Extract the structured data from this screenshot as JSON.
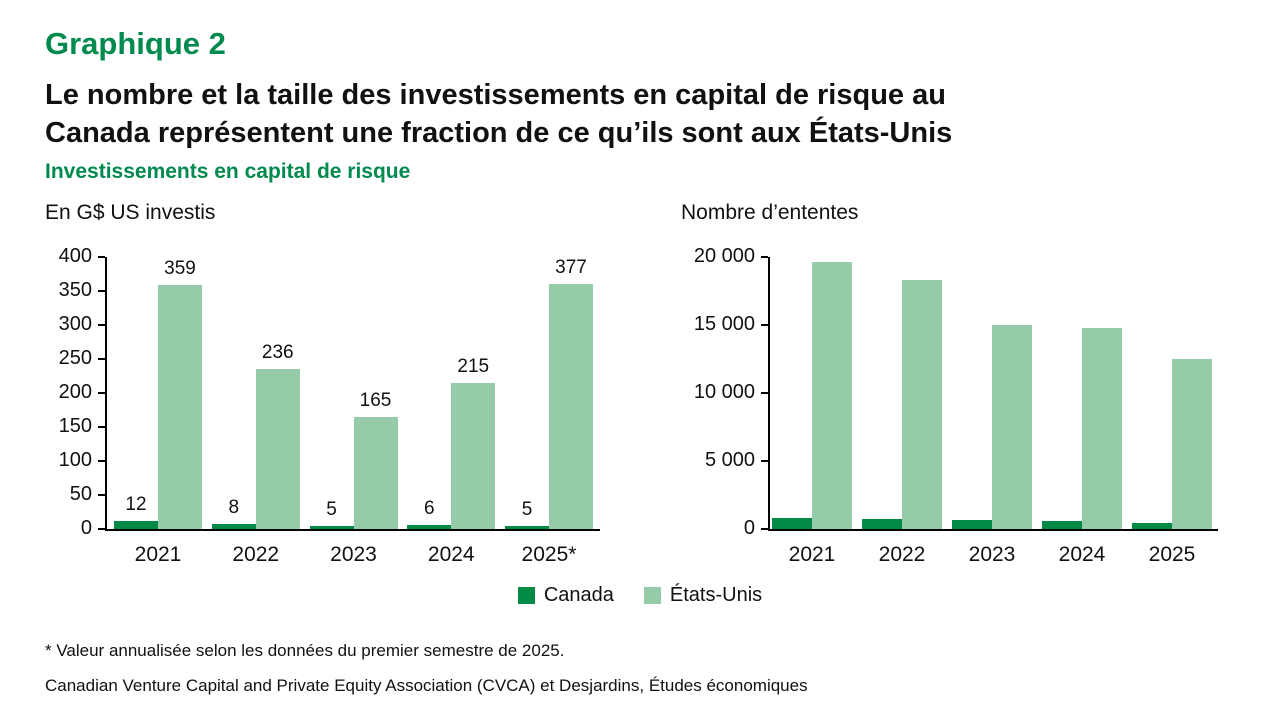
{
  "header": {
    "kicker": "Graphique 2",
    "title_line1": "Le nombre et la taille des investissements en capital de risque au",
    "title_line2": "Canada représentent une fraction de ce qu’ils sont aux États-Unis",
    "subtitle": "Investissements en capital de risque"
  },
  "colors": {
    "accent_green": "#008a4d",
    "canada_green": "#008a46",
    "us_green": "#95cba9",
    "text": "#111111"
  },
  "chart_data": [
    {
      "type": "bar",
      "title": "En G$ US investis",
      "categories": [
        "2021",
        "2022",
        "2023",
        "2024",
        "2025*"
      ],
      "series": [
        {
          "name": "Canada",
          "color": "#008a46",
          "values": [
            12,
            8,
            5,
            6,
            5
          ]
        },
        {
          "name": "États-Unis",
          "color": "#95cba9",
          "values": [
            359,
            236,
            165,
            215,
            377
          ]
        }
      ],
      "ylim": [
        0,
        400
      ],
      "ytick_values": [
        0,
        50,
        100,
        150,
        200,
        250,
        300,
        350,
        400
      ],
      "ytick_labels": [
        "0",
        "50",
        "100",
        "150",
        "200",
        "250",
        "300",
        "350",
        "400"
      ],
      "show_data_labels": true,
      "grid": false,
      "legend_position": "bottom-center"
    },
    {
      "type": "bar",
      "title": "Nombre d’ententes",
      "categories": [
        "2021",
        "2022",
        "2023",
        "2024",
        "2025"
      ],
      "series": [
        {
          "name": "Canada",
          "color": "#008a46",
          "values": [
            800,
            750,
            680,
            600,
            450
          ]
        },
        {
          "name": "États-Unis",
          "color": "#95cba9",
          "values": [
            19600,
            18300,
            15000,
            14800,
            12500
          ]
        }
      ],
      "ylim": [
        0,
        20000
      ],
      "ytick_values": [
        0,
        5000,
        10000,
        15000,
        20000
      ],
      "ytick_labels": [
        "0",
        "5 000",
        "10 000",
        "15 000",
        "20 000"
      ],
      "show_data_labels": false,
      "grid": false,
      "legend_position": "bottom-center"
    }
  ],
  "legend": {
    "items": [
      {
        "label": "Canada",
        "color": "#008a46"
      },
      {
        "label": "États-Unis",
        "color": "#95cba9"
      }
    ]
  },
  "footer": {
    "footnote": "* Valeur annualisée selon les données du premier semestre de 2025.",
    "source": "Canadian Venture Capital and Private Equity Association (CVCA) et Desjardins, Études économiques"
  }
}
